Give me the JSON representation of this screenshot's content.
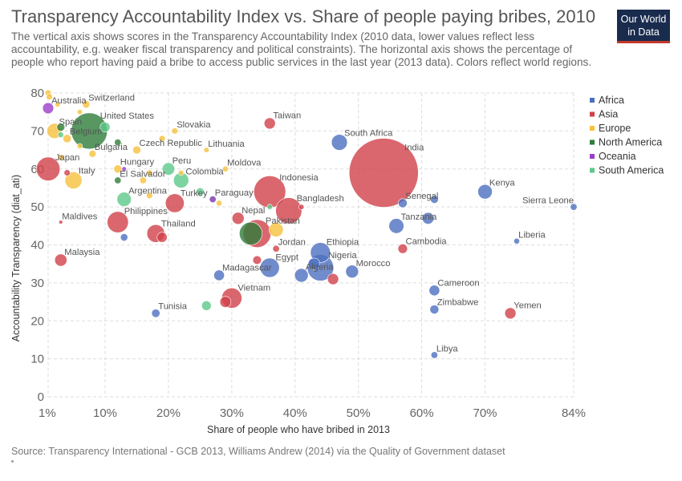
{
  "header": {
    "title": "Transparency Accountability Index vs. Share of people paying bribes, 2010",
    "subtitle": "The vertical axis shows scores in the Transparency Accountability Index (2010 data, lower values reflect less accountability, e.g. weaker fiscal transparency and political constraints). The horizontal axis shows the percentage of people who report having paid a bribe to access public services in the last year (2013 data). Colors reflect world regions.",
    "logo_line1": "Our World",
    "logo_line2": "in Data"
  },
  "footer": {
    "source": "Source: Transparency International - GCB 2013, Williams Andrew (2014) via the Quality of Government dataset"
  },
  "chart_data": {
    "type": "scatter",
    "xlabel": "Share of people who have bribed in 2013",
    "ylabel": "Accountability Transparency (diat_ati)",
    "xlim": [
      1,
      84
    ],
    "ylim": [
      0,
      80
    ],
    "x_ticks": [
      1,
      10,
      20,
      30,
      40,
      50,
      60,
      70,
      84
    ],
    "x_tick_labels": [
      "1%",
      "10%",
      "20%",
      "30%",
      "40%",
      "50%",
      "60%",
      "70%",
      "84%"
    ],
    "y_ticks": [
      0,
      10,
      20,
      30,
      40,
      50,
      60,
      70,
      80
    ],
    "grid": true,
    "legend_position": "right",
    "regions": [
      {
        "name": "Africa",
        "color": "#4c6fbf"
      },
      {
        "name": "Asia",
        "color": "#d1414a"
      },
      {
        "name": "Europe",
        "color": "#f6c13c"
      },
      {
        "name": "North America",
        "color": "#2e7d3a"
      },
      {
        "name": "Oceania",
        "color": "#9b3ec8"
      },
      {
        "name": "South America",
        "color": "#5ec98a"
      }
    ],
    "points": [
      {
        "label": "India",
        "x": 54,
        "y": 59,
        "region": "Asia",
        "size": 1200,
        "labeled": true
      },
      {
        "label": "Australia",
        "x": 1,
        "y": 76,
        "region": "Oceania",
        "size": 22,
        "labeled": true
      },
      {
        "label": "Switzerland",
        "x": 7,
        "y": 77,
        "region": "Europe",
        "size": 8,
        "labeled": true
      },
      {
        "label": "United States",
        "x": 7.5,
        "y": 70,
        "region": "North America",
        "size": 310,
        "labeled": true
      },
      {
        "label": "Spain",
        "x": 2,
        "y": 70,
        "region": "Europe",
        "size": 46,
        "labeled": true
      },
      {
        "label": "Belgium",
        "x": 4,
        "y": 68,
        "region": "Europe",
        "size": 11,
        "labeled": true
      },
      {
        "label": "Japan",
        "x": 1,
        "y": 60,
        "region": "Asia",
        "size": 127,
        "labeled": true
      },
      {
        "label": "Italy",
        "x": 5,
        "y": 57,
        "region": "Europe",
        "size": 60,
        "labeled": true
      },
      {
        "label": "Taiwan",
        "x": 36,
        "y": 72,
        "region": "Asia",
        "size": 23,
        "labeled": true
      },
      {
        "label": "Slovakia",
        "x": 21,
        "y": 70,
        "region": "Europe",
        "size": 5,
        "labeled": true
      },
      {
        "label": "Bulgaria",
        "x": 8,
        "y": 64,
        "region": "Europe",
        "size": 7,
        "labeled": true
      },
      {
        "label": "Czech Republic",
        "x": 15,
        "y": 65,
        "region": "Europe",
        "size": 10,
        "labeled": true
      },
      {
        "label": "Lithuania",
        "x": 26,
        "y": 65,
        "region": "Europe",
        "size": 3,
        "labeled": true
      },
      {
        "label": "Hungary",
        "x": 12,
        "y": 60,
        "region": "Europe",
        "size": 10,
        "labeled": true
      },
      {
        "label": "Peru",
        "x": 20,
        "y": 60,
        "region": "South America",
        "size": 30,
        "labeled": true
      },
      {
        "label": "Moldova",
        "x": 29,
        "y": 60,
        "region": "Europe",
        "size": 4,
        "labeled": true
      },
      {
        "label": "El Salvador",
        "x": 12,
        "y": 57,
        "region": "North America",
        "size": 6,
        "labeled": true
      },
      {
        "label": "Colombia",
        "x": 22,
        "y": 57,
        "region": "South America",
        "size": 47,
        "labeled": true
      },
      {
        "label": "Argentina",
        "x": 13,
        "y": 52,
        "region": "South America",
        "size": 41,
        "labeled": true
      },
      {
        "label": "Paraguay",
        "x": 27,
        "y": 52,
        "region": "South America",
        "size": 7,
        "labeled": true
      },
      {
        "label": "Turkey",
        "x": 21,
        "y": 51,
        "region": "Asia",
        "size": 75,
        "labeled": true
      },
      {
        "label": "Indonesia",
        "x": 36,
        "y": 54,
        "region": "Asia",
        "size": 240,
        "labeled": true
      },
      {
        "label": "Bangladesh",
        "x": 39,
        "y": 49,
        "region": "Asia",
        "size": 155,
        "labeled": true
      },
      {
        "label": "South Africa",
        "x": 47,
        "y": 67,
        "region": "Africa",
        "size": 52,
        "labeled": true
      },
      {
        "label": "Senegal",
        "x": 57,
        "y": 51,
        "region": "Africa",
        "size": 13,
        "labeled": true
      },
      {
        "label": "Kenya",
        "x": 70,
        "y": 54,
        "region": "Africa",
        "size": 42,
        "labeled": true
      },
      {
        "label": "Sierra Leone",
        "x": 84,
        "y": 50,
        "region": "Africa",
        "size": 6,
        "labeled": true
      },
      {
        "label": "Maldives",
        "x": 3,
        "y": 46,
        "region": "Asia",
        "size": 1,
        "labeled": true
      },
      {
        "label": "Philippines",
        "x": 12,
        "y": 46,
        "region": "Asia",
        "size": 98,
        "labeled": true
      },
      {
        "label": "Nepal",
        "x": 31,
        "y": 47,
        "region": "Asia",
        "size": 27,
        "labeled": true
      },
      {
        "label": "Pakistan",
        "x": 34,
        "y": 43,
        "region": "Asia",
        "size": 180,
        "labeled": true
      },
      {
        "label": "Tanzania",
        "x": 56,
        "y": 45,
        "region": "Africa",
        "size": 45,
        "labeled": true
      },
      {
        "label": "Thailand",
        "x": 18,
        "y": 43,
        "region": "Asia",
        "size": 67,
        "labeled": true
      },
      {
        "label": "Liberia",
        "x": 75,
        "y": 41,
        "region": "Africa",
        "size": 4,
        "labeled": true
      },
      {
        "label": "Jordan",
        "x": 37,
        "y": 39,
        "region": "Asia",
        "size": 6,
        "labeled": true
      },
      {
        "label": "Cambodia",
        "x": 57,
        "y": 39,
        "region": "Asia",
        "size": 15,
        "labeled": true
      },
      {
        "label": "Ethiopia",
        "x": 44,
        "y": 38,
        "region": "Africa",
        "size": 85,
        "labeled": true
      },
      {
        "label": "Malaysia",
        "x": 3,
        "y": 36,
        "region": "Asia",
        "size": 28,
        "labeled": true
      },
      {
        "label": "Egypt",
        "x": 36,
        "y": 34,
        "region": "Africa",
        "size": 80,
        "labeled": true
      },
      {
        "label": "Nigeria",
        "x": 44,
        "y": 34,
        "region": "Africa",
        "size": 160,
        "labeled": true
      },
      {
        "label": "Algeria",
        "x": 41,
        "y": 32,
        "region": "Africa",
        "size": 36,
        "labeled": true
      },
      {
        "label": "Morocco",
        "x": 49,
        "y": 33,
        "region": "Africa",
        "size": 32,
        "labeled": true
      },
      {
        "label": "Madagascar",
        "x": 28,
        "y": 32,
        "region": "Africa",
        "size": 20,
        "labeled": true
      },
      {
        "label": "Cameroon",
        "x": 62,
        "y": 28,
        "region": "Africa",
        "size": 20,
        "labeled": true
      },
      {
        "label": "Vietnam",
        "x": 30,
        "y": 26,
        "region": "Asia",
        "size": 88,
        "labeled": true
      },
      {
        "label": "Zimbabwe",
        "x": 62,
        "y": 23,
        "region": "Africa",
        "size": 13,
        "labeled": true
      },
      {
        "label": "Yemen",
        "x": 74,
        "y": 22,
        "region": "Asia",
        "size": 23,
        "labeled": true
      },
      {
        "label": "Tunisia",
        "x": 18,
        "y": 22,
        "region": "Africa",
        "size": 11,
        "labeled": true
      },
      {
        "label": "Libya",
        "x": 62,
        "y": 11,
        "region": "Africa",
        "size": 6,
        "labeled": true
      },
      {
        "label": "",
        "x": 1,
        "y": 80,
        "region": "Europe",
        "size": 5,
        "labeled": false
      },
      {
        "label": "",
        "x": 1.2,
        "y": 79,
        "region": "Europe",
        "size": 5,
        "labeled": false
      },
      {
        "label": "",
        "x": 2.5,
        "y": 77,
        "region": "Europe",
        "size": 3,
        "labeled": false
      },
      {
        "label": "",
        "x": 6,
        "y": 75,
        "region": "Europe",
        "size": 3,
        "labeled": false
      },
      {
        "label": "",
        "x": 10,
        "y": 71,
        "region": "South America",
        "size": 17,
        "labeled": false
      },
      {
        "label": "",
        "x": 3,
        "y": 71,
        "region": "North America",
        "size": 10,
        "labeled": false
      },
      {
        "label": "",
        "x": 3,
        "y": 69,
        "region": "South America",
        "size": 4,
        "labeled": false
      },
      {
        "label": "",
        "x": 6,
        "y": 66,
        "region": "Europe",
        "size": 3,
        "labeled": false
      },
      {
        "label": "",
        "x": 12,
        "y": 67,
        "region": "North America",
        "size": 6,
        "labeled": false
      },
      {
        "label": "",
        "x": 19,
        "y": 68,
        "region": "Europe",
        "size": 5,
        "labeled": false
      },
      {
        "label": "",
        "x": 3,
        "y": 63,
        "region": "Europe",
        "size": 5,
        "labeled": false
      },
      {
        "label": "",
        "x": 4,
        "y": 59,
        "region": "Asia",
        "size": 5,
        "labeled": false
      },
      {
        "label": "",
        "x": 13,
        "y": 60,
        "region": "Oceania",
        "size": 2,
        "labeled": false
      },
      {
        "label": "",
        "x": 17,
        "y": 59,
        "region": "Europe",
        "size": 4,
        "labeled": false
      },
      {
        "label": "",
        "x": 22,
        "y": 59,
        "region": "Europe",
        "size": 3,
        "labeled": false
      },
      {
        "label": "",
        "x": 16,
        "y": 57,
        "region": "Europe",
        "size": 6,
        "labeled": false
      },
      {
        "label": "",
        "x": 17,
        "y": 53,
        "region": "Europe",
        "size": 5,
        "labeled": false
      },
      {
        "label": "",
        "x": 25,
        "y": 54,
        "region": "South America",
        "size": 10,
        "labeled": false
      },
      {
        "label": "",
        "x": 27,
        "y": 52,
        "region": "Oceania",
        "size": 6,
        "labeled": false
      },
      {
        "label": "",
        "x": 28,
        "y": 51,
        "region": "Europe",
        "size": 4,
        "labeled": false
      },
      {
        "label": "",
        "x": 36,
        "y": 50,
        "region": "South America",
        "size": 3,
        "labeled": false
      },
      {
        "label": "",
        "x": 41,
        "y": 50,
        "region": "Asia",
        "size": 3,
        "labeled": false
      },
      {
        "label": "",
        "x": 62,
        "y": 52,
        "region": "Africa",
        "size": 10,
        "labeled": false
      },
      {
        "label": "",
        "x": 61,
        "y": 47,
        "region": "Africa",
        "size": 25,
        "labeled": false
      },
      {
        "label": "",
        "x": 33,
        "y": 43,
        "region": "North America",
        "size": 115,
        "labeled": false
      },
      {
        "label": "",
        "x": 37,
        "y": 44,
        "region": "Europe",
        "size": 40,
        "labeled": false
      },
      {
        "label": "",
        "x": 19,
        "y": 42,
        "region": "Asia",
        "size": 18,
        "labeled": false
      },
      {
        "label": "",
        "x": 13,
        "y": 42,
        "region": "Africa",
        "size": 8,
        "labeled": false
      },
      {
        "label": "",
        "x": 34,
        "y": 36,
        "region": "Asia",
        "size": 12,
        "labeled": false
      },
      {
        "label": "",
        "x": 43,
        "y": 35,
        "region": "Africa",
        "size": 25,
        "labeled": false
      },
      {
        "label": "",
        "x": 46,
        "y": 31,
        "region": "Asia",
        "size": 22,
        "labeled": false
      },
      {
        "label": "",
        "x": 29,
        "y": 25,
        "region": "Asia",
        "size": 22,
        "labeled": false
      },
      {
        "label": "",
        "x": 26,
        "y": 24,
        "region": "South America",
        "size": 16,
        "labeled": false
      }
    ]
  }
}
